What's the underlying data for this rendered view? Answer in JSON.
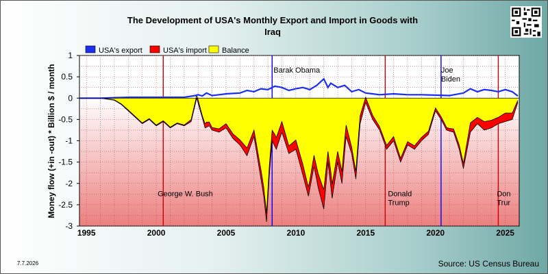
{
  "chart_data": {
    "type": "area",
    "title": "The Development of USA's Monthly Export and Import in Goods with Iraq",
    "ylabel": "Money flow (+in -out) * Billion $ / month",
    "xlabel": "",
    "ylim": [
      -3,
      1
    ],
    "xlim": [
      1994.5,
      2026.0
    ],
    "y_ticks": [
      "1",
      "0.5",
      "0",
      "-0.5",
      "-1",
      "-1.5",
      "-2",
      "-2.5",
      "-3"
    ],
    "x_ticks": [
      "1995",
      "2000",
      "2005",
      "2010",
      "2015",
      "2020",
      "2025"
    ],
    "grid": true,
    "legend": {
      "placement": "top-left",
      "entries": [
        {
          "name": "USA's export",
          "color": "#1b2ff0"
        },
        {
          "name": "USA's import",
          "color": "#ff0000"
        },
        {
          "name": "Balance",
          "color": "#ffff00"
        }
      ]
    },
    "series": [
      {
        "name": "USA's export",
        "x": [
          1994.5,
          1996.0,
          1997.0,
          1998.0,
          2000.0,
          2002.0,
          2002.8,
          2003.0,
          2003.3,
          2003.6,
          2004.0,
          2005.0,
          2006.0,
          2006.5,
          2007.0,
          2007.5,
          2008.0,
          2008.5,
          2009.0,
          2009.5,
          2010.0,
          2010.5,
          2011.0,
          2011.5,
          2012.0,
          2012.3,
          2012.5,
          2013.0,
          2013.5,
          2014.0,
          2014.5,
          2015.0,
          2015.5,
          2016.0,
          2017.0,
          2018.0,
          2019.0,
          2020.0,
          2021.0,
          2022.0,
          2022.5,
          2023.0,
          2023.5,
          2024.0,
          2024.5,
          2025.0,
          2025.5,
          2025.9
        ],
        "values": [
          0.0,
          0.0,
          0.01,
          0.02,
          0.02,
          0.02,
          0.06,
          0.08,
          0.05,
          0.12,
          0.06,
          0.1,
          0.12,
          0.18,
          0.15,
          0.22,
          0.2,
          0.28,
          0.25,
          0.18,
          0.22,
          0.25,
          0.2,
          0.3,
          0.45,
          0.25,
          0.35,
          0.25,
          0.3,
          0.15,
          0.2,
          0.12,
          0.1,
          0.08,
          0.1,
          0.08,
          0.08,
          0.07,
          0.06,
          0.12,
          0.22,
          0.15,
          0.2,
          0.18,
          0.15,
          0.2,
          0.15,
          0.05
        ]
      },
      {
        "name": "USA's import",
        "x": [
          1994.5,
          1996.0,
          1997.0,
          1997.5,
          1998.0,
          1998.5,
          1999.0,
          1999.5,
          2000.0,
          2000.5,
          2001.0,
          2001.5,
          2002.0,
          2002.5,
          2002.9,
          2003.2,
          2003.5,
          2003.8,
          2004.0,
          2004.5,
          2005.0,
          2005.5,
          2006.0,
          2006.5,
          2007.0,
          2007.4,
          2007.7,
          2007.9,
          2008.1,
          2008.3,
          2008.6,
          2009.0,
          2009.5,
          2010.0,
          2010.5,
          2010.9,
          2011.3,
          2011.6,
          2012.0,
          2012.3,
          2012.6,
          2013.0,
          2013.3,
          2013.6,
          2014.0,
          2014.3,
          2014.6,
          2015.0,
          2015.5,
          2016.0,
          2016.5,
          2017.0,
          2017.5,
          2018.0,
          2018.5,
          2019.0,
          2019.5,
          2020.0,
          2020.4,
          2020.8,
          2021.3,
          2021.7,
          2022.0,
          2022.5,
          2023.0,
          2023.5,
          2024.0,
          2024.5,
          2025.0,
          2025.5,
          2025.9
        ],
        "values": [
          0.0,
          0.0,
          -0.05,
          -0.15,
          -0.3,
          -0.45,
          -0.6,
          -0.5,
          -0.65,
          -0.55,
          -0.7,
          -0.6,
          -0.65,
          -0.55,
          0.0,
          -0.35,
          -0.7,
          -0.65,
          -0.75,
          -0.8,
          -0.7,
          -0.95,
          -1.1,
          -1.35,
          -0.9,
          -1.7,
          -2.3,
          -2.9,
          -1.8,
          -1.0,
          -1.2,
          -0.8,
          -1.3,
          -1.2,
          -1.8,
          -2.3,
          -1.6,
          -2.1,
          -2.6,
          -1.5,
          -2.35,
          -1.5,
          -2.0,
          -0.9,
          -1.3,
          -1.9,
          -0.6,
          -0.1,
          -0.5,
          -0.75,
          -1.2,
          -1.0,
          -1.5,
          -1.1,
          -1.2,
          -1.0,
          -0.85,
          -0.3,
          -0.5,
          -0.75,
          -0.8,
          -1.2,
          -1.65,
          -0.8,
          -0.6,
          -0.75,
          -0.7,
          -0.6,
          -0.55,
          -0.5,
          -0.1
        ]
      },
      {
        "name": "Balance",
        "derived": "USA's export + USA's import"
      }
    ],
    "annotations": [
      {
        "text": "George W. Bush",
        "x": 2000.0,
        "y": -2.3,
        "color": "#cc0000"
      },
      {
        "text": "Barak Obama",
        "x": 2008.3,
        "y": 0.6,
        "color": "#0000ff"
      },
      {
        "text": "Donald\nTrump",
        "x": 2016.5,
        "y": -2.3,
        "color": "#cc0000"
      },
      {
        "text": "Joe\nBiden",
        "x": 2020.3,
        "y": 0.6,
        "color": "#0000ff"
      },
      {
        "text": "Don\nTrur",
        "x": 2024.3,
        "y": -2.3,
        "color": "#cc0000"
      }
    ],
    "presidency_lines": [
      {
        "x": 2000.5,
        "color": "#cc0000"
      },
      {
        "x": 2008.3,
        "color": "#0000ff"
      },
      {
        "x": 2016.4,
        "color": "#cc0000"
      },
      {
        "x": 2020.4,
        "color": "#0000ff"
      },
      {
        "x": 2024.5,
        "color": "#cc0000"
      }
    ]
  },
  "footer": {
    "date": "7.7.2026",
    "source": "Source: US Census Bureau"
  }
}
